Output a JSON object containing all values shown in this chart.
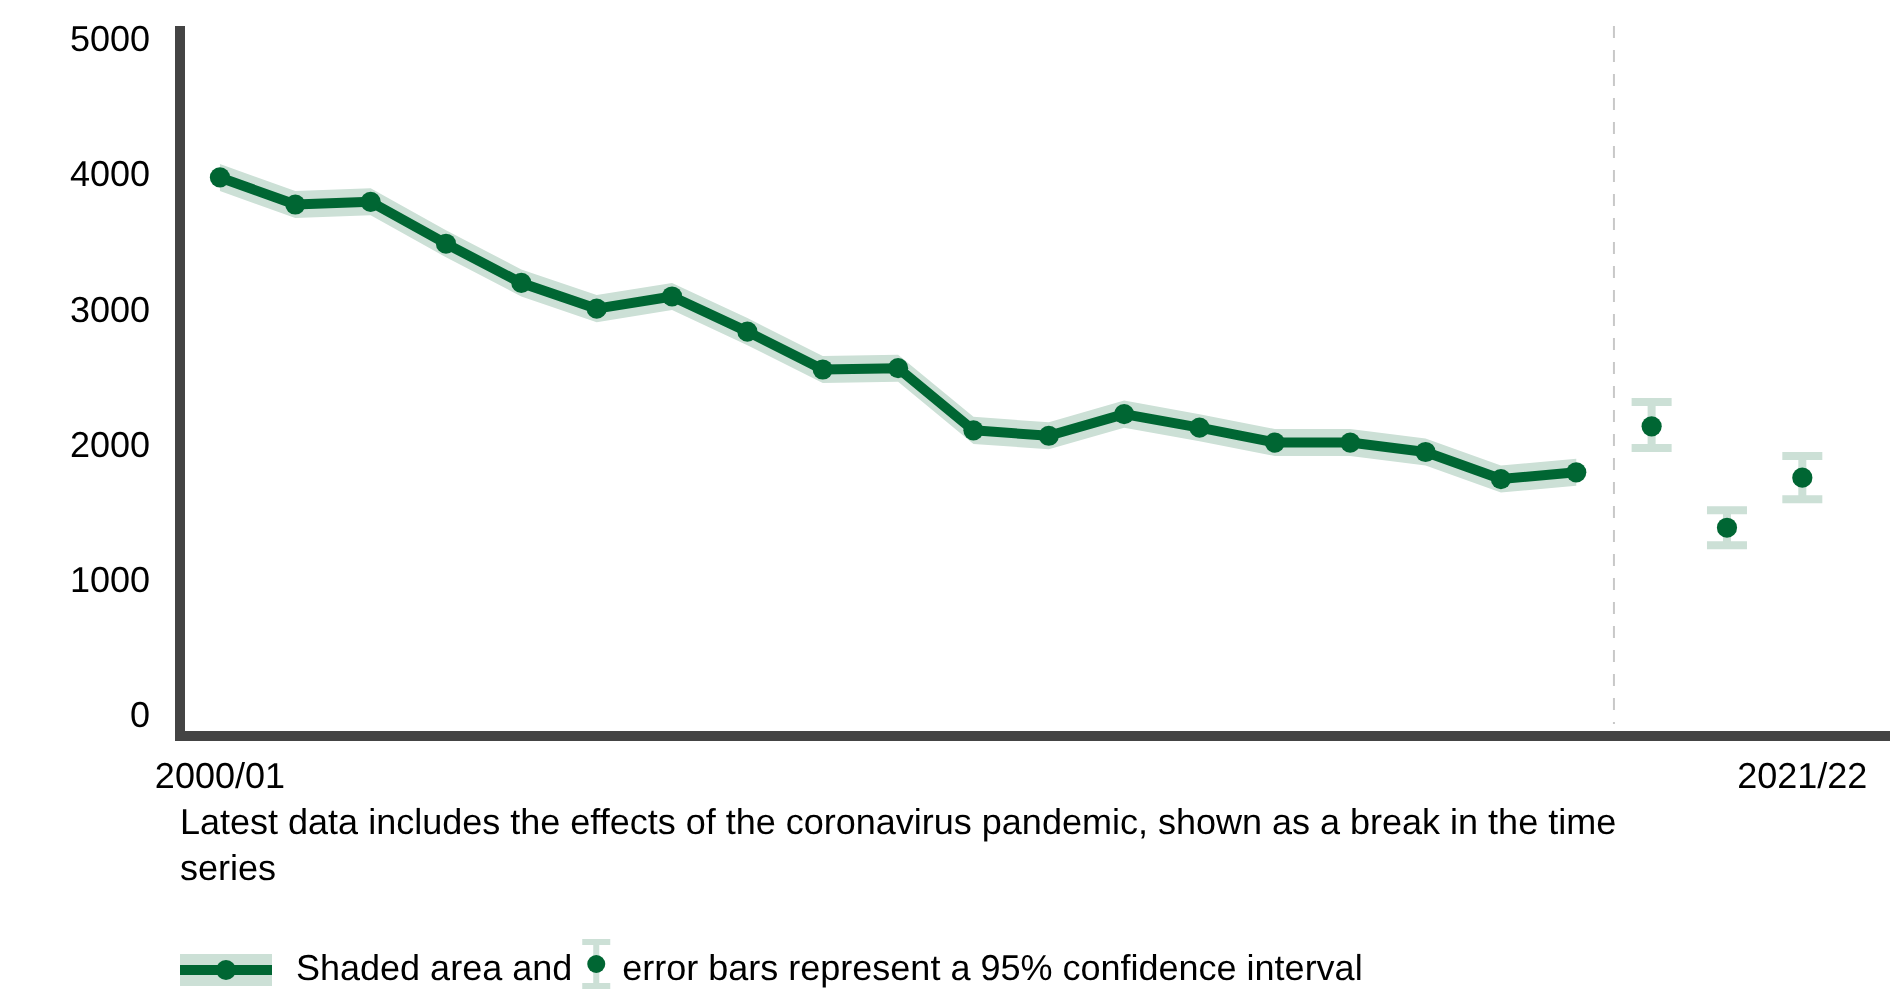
{
  "chart_data": {
    "type": "line",
    "categories": [
      "2000/01",
      null,
      null,
      null,
      null,
      null,
      null,
      null,
      null,
      null,
      null,
      null,
      null,
      null,
      null,
      null,
      null,
      null,
      null,
      null,
      null,
      "2021/22"
    ],
    "ylim": [
      -150,
      5100
    ],
    "yticks": [
      0,
      1000,
      2000,
      3000,
      4000,
      5000
    ],
    "series": [
      {
        "color": "#006633",
        "values": [
          3980,
          3780,
          3800,
          3490,
          3200,
          3010,
          3100,
          2840,
          2560,
          2570,
          2110,
          2070,
          2230,
          2130,
          2020,
          2020,
          1950,
          1750,
          1800,
          null,
          null,
          null
        ],
        "lower": [
          3880,
          3680,
          3700,
          3390,
          3100,
          2910,
          3000,
          2740,
          2460,
          2470,
          2010,
          1970,
          2130,
          2030,
          1920,
          1920,
          1850,
          1650,
          1700,
          null,
          null,
          null
        ],
        "upper": [
          4080,
          3880,
          3900,
          3590,
          3300,
          3110,
          3200,
          2940,
          2660,
          2670,
          2210,
          2170,
          2330,
          2230,
          2120,
          2120,
          2050,
          1850,
          1900,
          null,
          null,
          null
        ]
      },
      {
        "type": "scatter",
        "color": "#006633",
        "values": [
          null,
          null,
          null,
          null,
          null,
          null,
          null,
          null,
          null,
          null,
          null,
          null,
          null,
          null,
          null,
          null,
          null,
          null,
          null,
          2140,
          1390,
          1760
        ],
        "errors": [
          null,
          null,
          null,
          null,
          null,
          null,
          null,
          null,
          null,
          null,
          null,
          null,
          null,
          null,
          null,
          null,
          null,
          null,
          null,
          [
            1980,
            2320
          ],
          [
            1260,
            1520
          ],
          [
            1600,
            1920
          ]
        ]
      }
    ],
    "marker": "circle",
    "grid": false,
    "annotations": [
      "Latest data includes the effects of the coronavirus pandemic, shown as a break in the time series",
      "Shaded area and",
      "error bars represent a 95% confidence interval"
    ]
  }
}
